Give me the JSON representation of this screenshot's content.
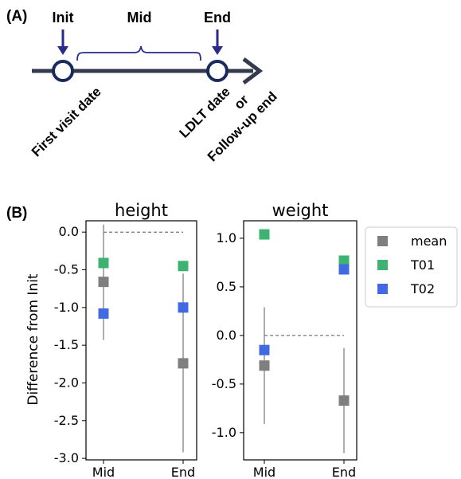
{
  "panel_a": {
    "label": "(A)",
    "stages": {
      "init": "Init",
      "mid": "Mid",
      "end": "End"
    },
    "start_label": "First visit date",
    "end_label_lines": [
      "LDLT date",
      "or",
      "Follow-up end"
    ],
    "colors": {
      "timeline": "#333b4d",
      "node": "#1b2a5c",
      "marker": "#2a2a8a",
      "brace": "#2a2a8a"
    }
  },
  "panel_b": {
    "label": "(B)"
  },
  "chart_data": [
    {
      "type": "scatter",
      "title": "height",
      "ylabel": "Difference from Init",
      "categories": [
        "Mid",
        "End"
      ],
      "ylim": [
        -3.02,
        0.15
      ],
      "yticks": [
        "0.0",
        "-0.5",
        "-1.0",
        "-1.5",
        "-2.0",
        "-2.5",
        "-3.0"
      ],
      "ytick_values": [
        0.0,
        -0.5,
        -1.0,
        -1.5,
        -2.0,
        -2.5,
        -3.0
      ],
      "reference_line": 0.0,
      "series": [
        {
          "name": "mean",
          "color": "#7f7f7f",
          "values": [
            -0.66,
            -1.74
          ],
          "error_low": [
            -1.43,
            -2.92
          ],
          "error_high": [
            0.1,
            -0.55
          ]
        },
        {
          "name": "T01",
          "color": "#3cb371",
          "values": [
            -0.41,
            -0.45
          ]
        },
        {
          "name": "T02",
          "color": "#4169e1",
          "values": [
            -1.08,
            -1.0
          ]
        }
      ]
    },
    {
      "type": "scatter",
      "title": "weight",
      "ylabel": "",
      "categories": [
        "Mid",
        "End"
      ],
      "ylim": [
        -1.28,
        1.18
      ],
      "yticks": [
        "1.0",
        "0.5",
        "0.0",
        "-0.5",
        "-1.0"
      ],
      "ytick_values": [
        1.0,
        0.5,
        0.0,
        -0.5,
        -1.0
      ],
      "reference_line": 0.0,
      "series": [
        {
          "name": "mean",
          "color": "#7f7f7f",
          "values": [
            -0.31,
            -0.67
          ],
          "error_low": [
            -0.91,
            -1.21
          ],
          "error_high": [
            0.29,
            -0.13
          ]
        },
        {
          "name": "T01",
          "color": "#3cb371",
          "values": [
            1.04,
            0.77
          ]
        },
        {
          "name": "T02",
          "color": "#4169e1",
          "values": [
            -0.15,
            0.68
          ]
        }
      ]
    }
  ],
  "legend": {
    "placement": "right",
    "entries": [
      {
        "label": "mean",
        "color": "#7f7f7f"
      },
      {
        "label": "T01",
        "color": "#3cb371"
      },
      {
        "label": "T02",
        "color": "#4169e1"
      }
    ]
  }
}
